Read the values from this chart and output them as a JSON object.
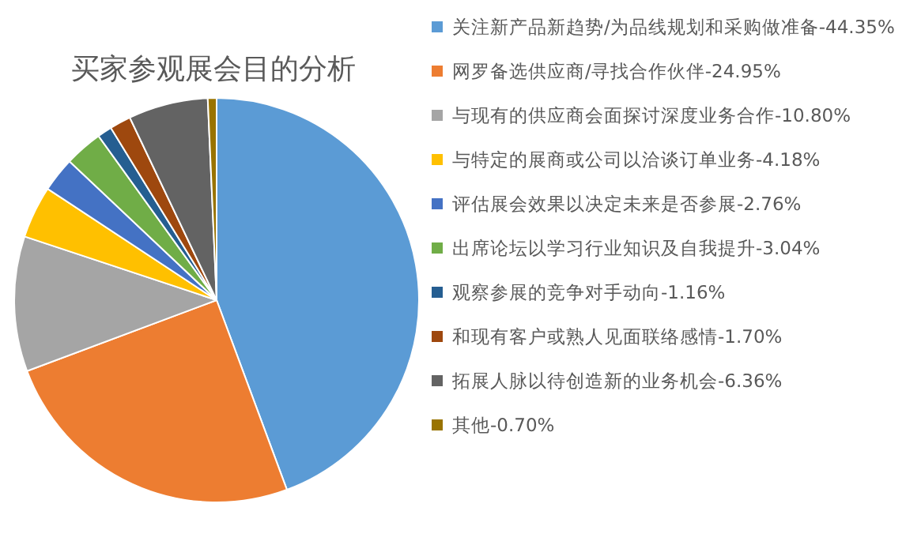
{
  "chart_data": {
    "type": "pie",
    "title": "买家参观展会目的分析",
    "categories": [
      "关注新产品新趋势/为品线规划和采购做准备-44.35%",
      "网罗备选供应商/寻找合作伙伴-24.95%",
      "与现有的供应商会面探讨深度业务合作-10.80%",
      "与特定的展商或公司以洽谈订单业务-4.18%",
      "评估展会效果以决定未来是否参展-2.76%",
      "出席论坛以学习行业知识及自我提升-3.04%",
      "观察参展的竞争对手动向-1.16%",
      "和现有客户或熟人见面联络感情-1.70%",
      "拓展人脉以待创造新的业务机会-6.36%",
      "其他-0.70%"
    ],
    "values": [
      44.35,
      24.95,
      10.8,
      4.18,
      2.76,
      3.04,
      1.16,
      1.7,
      6.36,
      0.7
    ],
    "colors": [
      "#5b9bd5",
      "#ed7d31",
      "#a5a5a5",
      "#ffc000",
      "#4472c4",
      "#70ad47",
      "#255e91",
      "#9e480e",
      "#636363",
      "#997300"
    ],
    "legend": "right"
  }
}
